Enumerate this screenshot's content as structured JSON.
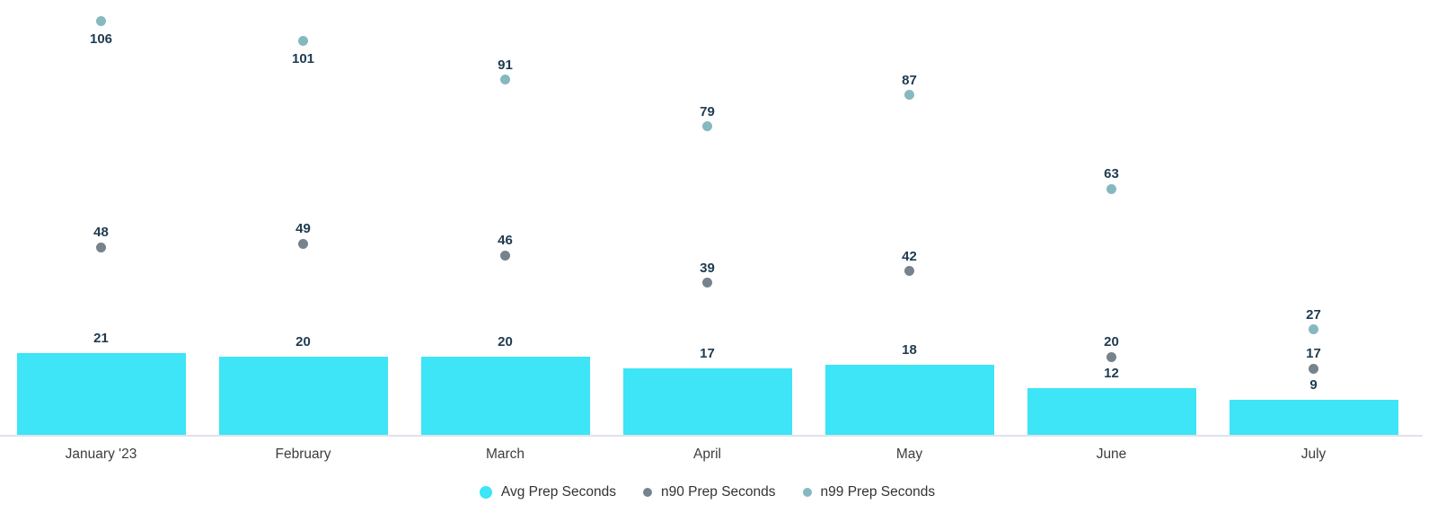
{
  "chart_data": {
    "type": "bar",
    "subtype": "combo-bar-with-point-series",
    "title": "",
    "xlabel": "",
    "ylabel": "",
    "categories": [
      "January '23",
      "February",
      "March",
      "April",
      "May",
      "June",
      "July"
    ],
    "series": [
      {
        "name": "Avg Prep Seconds",
        "mark": "bar",
        "color": "#3de5f6",
        "values": [
          21,
          20,
          20,
          17,
          18,
          12,
          9
        ]
      },
      {
        "name": "n90 Prep Seconds",
        "mark": "point",
        "color": "#76838c",
        "values": [
          48,
          49,
          46,
          39,
          42,
          20,
          17
        ]
      },
      {
        "name": "n99 Prep Seconds",
        "mark": "point",
        "color": "#86b8c0",
        "values": [
          106,
          101,
          91,
          79,
          87,
          63,
          27
        ],
        "label_below_indices": [
          0,
          1
        ]
      }
    ],
    "ylim": [
      0,
      111.5
    ],
    "grid": false,
    "y_axis_visible": false,
    "x_axis_line_visible": true,
    "value_labels_visible": true,
    "legend_position": "bottom-center"
  },
  "colors": {
    "value_label": "#1e3b50",
    "x_axis_label": "#3d3d3d",
    "axis_line": "#dfe2ec",
    "background": "#ffffff"
  }
}
